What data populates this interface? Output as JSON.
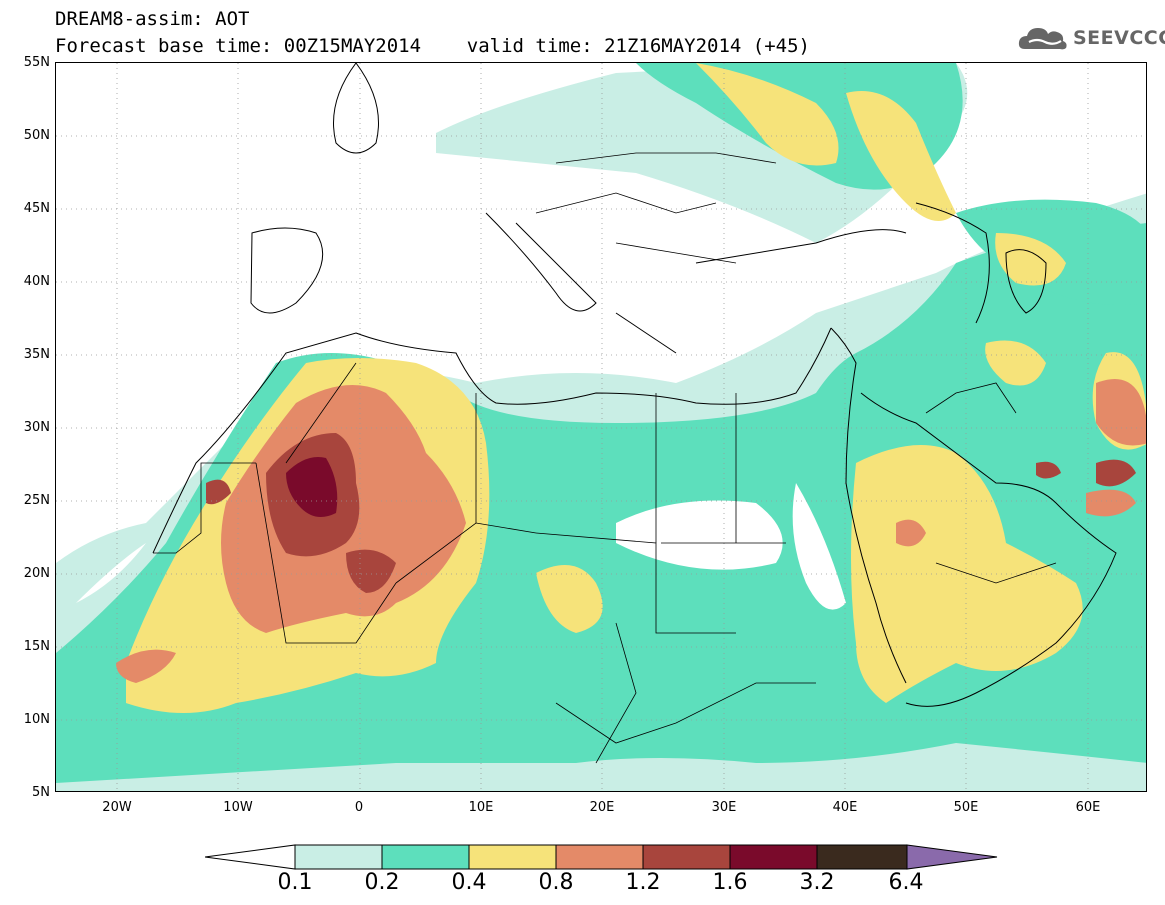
{
  "header": {
    "title_line1": "DREAM8-assim: AOT",
    "title_line2": "Forecast base time: 00Z15MAY2014    valid time: 21Z16MAY2014 (+45)",
    "logo_text": "SEEVCCC"
  },
  "map": {
    "lat_labels": [
      "55N",
      "50N",
      "45N",
      "40N",
      "35N",
      "30N",
      "25N",
      "20N",
      "15N",
      "10N",
      "5N"
    ],
    "lon_labels": [
      "20W",
      "10W",
      "0",
      "10E",
      "20E",
      "30E",
      "40E",
      "50E",
      "60E"
    ],
    "lat_range": [
      5,
      55
    ],
    "lon_range": [
      -25,
      65
    ],
    "grid": "dotted"
  },
  "colorbar": {
    "levels": [
      "0.1",
      "0.2",
      "0.4",
      "0.8",
      "1.2",
      "1.6",
      "3.2",
      "6.4"
    ],
    "colors": [
      "#ffffff",
      "#c9eee5",
      "#5ddfbc",
      "#f6e37a",
      "#e48a68",
      "#a8453d",
      "#7a0a2b",
      "#3a2a1e",
      "#8a6aab"
    ]
  }
}
